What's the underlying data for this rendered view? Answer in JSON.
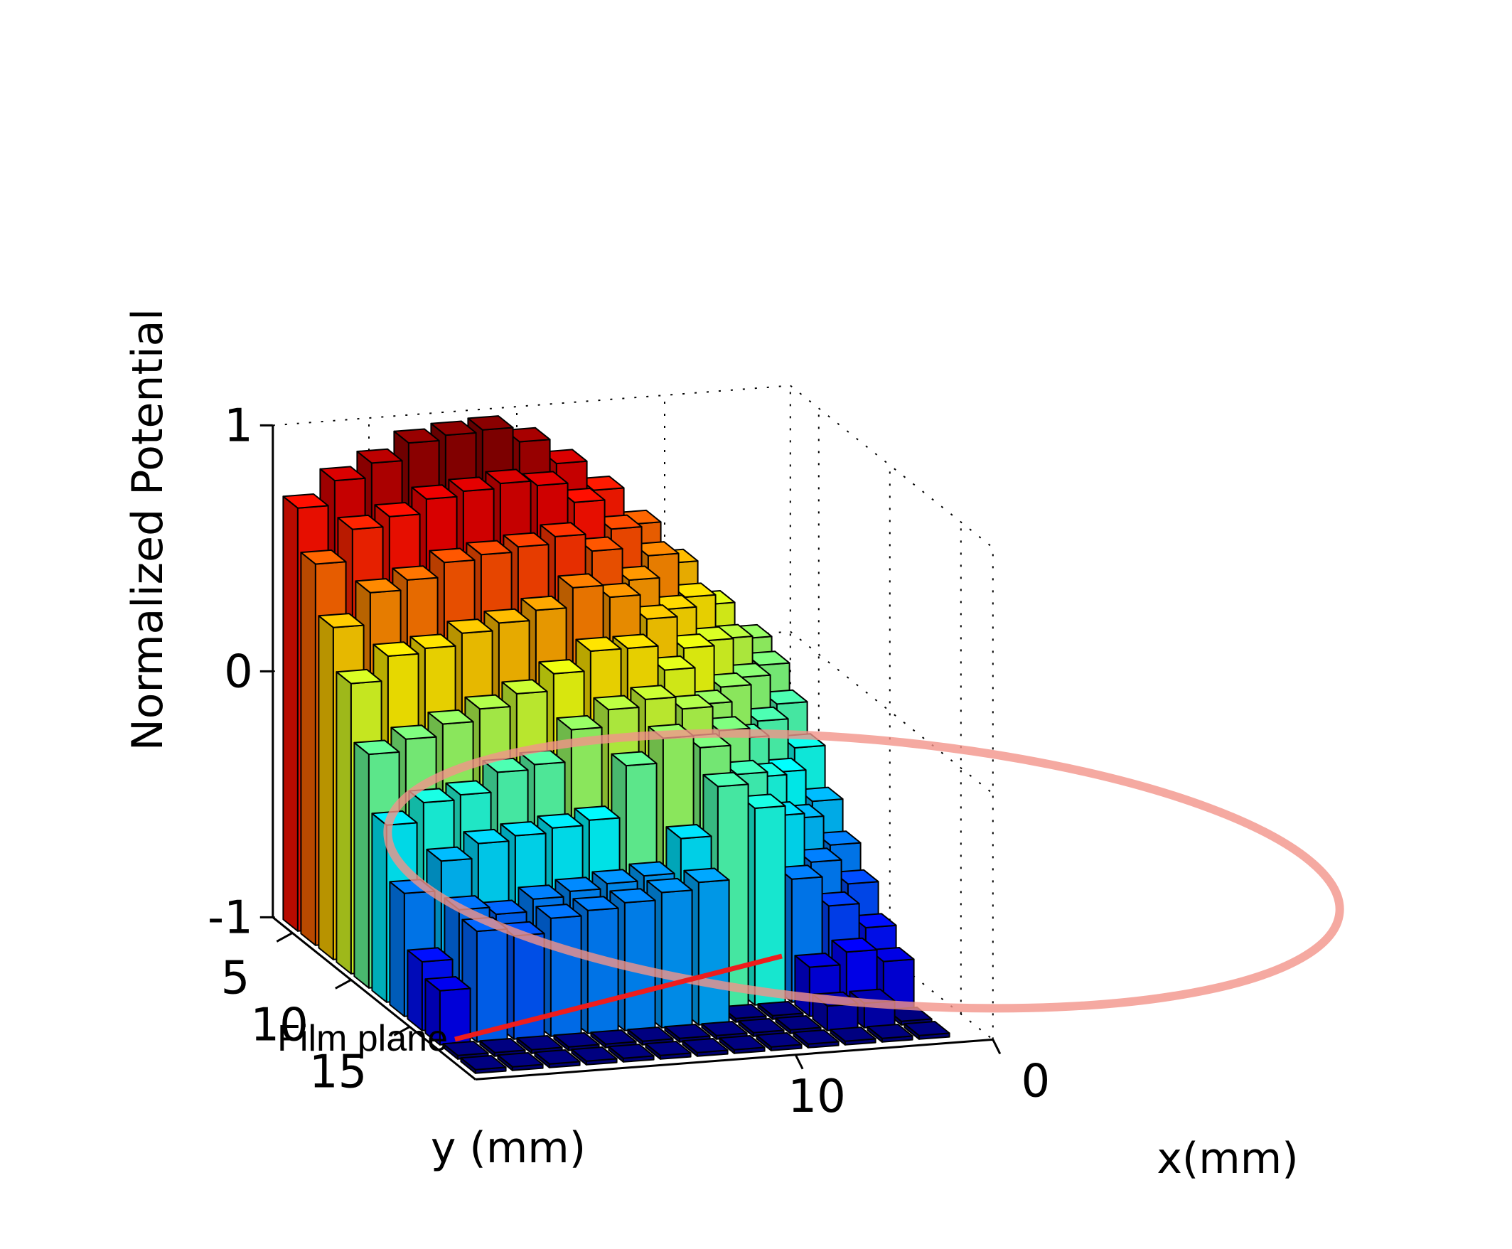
{
  "chart_data": {
    "type": "bar3d",
    "xlabel": "x(mm)",
    "ylabel": "y (mm)",
    "zlabel": "Normalized Potential",
    "x_ticks": [
      0,
      10
    ],
    "y_ticks": [
      5,
      10,
      15
    ],
    "z_ticks": [
      1,
      0,
      -1
    ],
    "zlim": [
      -1,
      1
    ],
    "grid": "dotted back planes",
    "colormap": "jet",
    "annotation": "Film plane",
    "rows_note": "rows ordered front (y≈15) to back (y≈3); columns ordered x≈13 (left) to x≈1 (right); null = no bar",
    "z": [
      [
        -1.0,
        -1.0,
        -1.0,
        -1.0,
        -1.0,
        -1.0,
        -1.0,
        -1.0,
        -1.0,
        -1.0,
        -1.0,
        -1.0,
        -1.0
      ],
      [
        -1.0,
        -1.0,
        -1.0,
        -1.0,
        -1.0,
        -1.0,
        -1.0,
        -1.0,
        -1.0,
        -1.0,
        -0.9,
        -0.9,
        -1.0
      ],
      [
        -0.78,
        -0.55,
        -0.58,
        -0.52,
        -0.5,
        -0.48,
        -0.45,
        -0.42,
        -1.0,
        -1.0,
        -0.8,
        -0.75,
        -0.8
      ],
      [
        -0.72,
        -0.52,
        -0.55,
        -0.5,
        -0.48,
        -0.46,
        -0.44,
        -0.3,
        -0.1,
        -0.2,
        -0.5,
        -0.62,
        -0.72
      ],
      [
        -0.5,
        -0.38,
        -0.32,
        -0.3,
        -0.28,
        -0.26,
        -0.05,
        0.05,
        0.0,
        -0.12,
        -0.3,
        -0.5,
        -0.6
      ],
      [
        -0.28,
        -0.2,
        -0.18,
        -0.1,
        -0.08,
        0.05,
        0.12,
        0.15,
        0.1,
        0.0,
        -0.2,
        -0.38,
        -0.5
      ],
      [
        -0.05,
        0.0,
        0.05,
        0.1,
        0.15,
        0.22,
        0.3,
        0.3,
        0.2,
        0.05,
        -0.1,
        -0.25,
        -0.38
      ],
      [
        0.18,
        0.28,
        0.3,
        0.35,
        0.38,
        0.42,
        0.5,
        0.45,
        0.35,
        0.22,
        0.05,
        -0.1,
        -0.22
      ],
      [
        0.35,
        0.48,
        0.52,
        0.58,
        0.6,
        0.62,
        0.65,
        0.58,
        0.45,
        0.32,
        0.18,
        0.02,
        -0.1
      ],
      [
        0.55,
        0.68,
        0.72,
        0.78,
        0.8,
        0.82,
        0.8,
        0.72,
        0.6,
        0.48,
        0.3,
        0.12,
        0.0
      ],
      [
        0.72,
        0.82,
        0.88,
        0.95,
        0.97,
        0.98,
        0.92,
        0.82,
        0.7,
        0.55,
        0.38,
        0.2,
        0.05
      ]
    ]
  }
}
